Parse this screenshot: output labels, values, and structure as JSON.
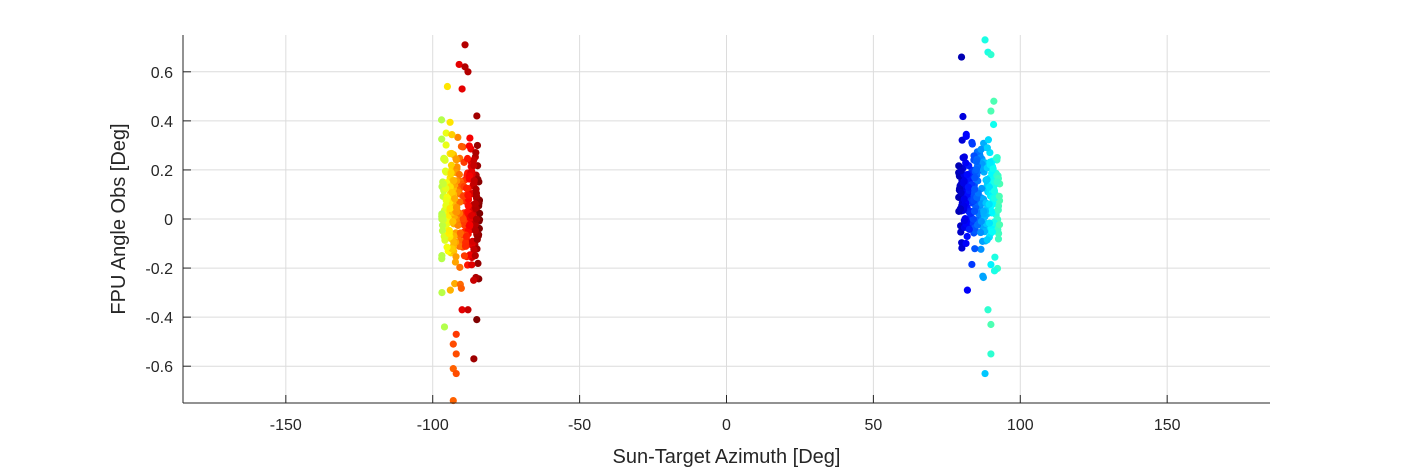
{
  "chart_data": {
    "type": "scatter",
    "title": "",
    "xlabel": "Sun-Target Azimuth [Deg]",
    "ylabel": "FPU Angle Obs [Deg]",
    "xlim": [
      -185,
      185
    ],
    "ylim": [
      -0.75,
      0.75
    ],
    "xticks": [
      -150,
      -100,
      -50,
      0,
      50,
      100,
      150
    ],
    "xtick_labels": [
      "-150",
      "-100",
      "-50",
      "0",
      "50",
      "100",
      "150"
    ],
    "yticks": [
      -0.6,
      -0.4,
      -0.2,
      0,
      0.2,
      0.4,
      0.6
    ],
    "ytick_labels": [
      "-0.6",
      "-0.4",
      "-0.2",
      "0",
      "0.2",
      "0.4",
      "0.6"
    ],
    "grid": true,
    "legend": "none",
    "colormap": "jet",
    "clusters": [
      {
        "x_range": [
          -97,
          -84
        ],
        "y_center": 0.05,
        "y_spread": 0.13,
        "color_value_range": [
          0.55,
          1.0
        ],
        "color_trend": "increasing-with-x"
      },
      {
        "x_range": [
          79,
          93
        ],
        "y_center": 0.08,
        "y_spread": 0.11,
        "color_value_range": [
          0.05,
          0.45
        ],
        "color_trend": "increasing-with-x"
      }
    ],
    "outliers": [
      {
        "x": -89,
        "y": 0.71,
        "c": 0.95
      },
      {
        "x": -91,
        "y": 0.63,
        "c": 0.9
      },
      {
        "x": -89,
        "y": 0.62,
        "c": 0.95
      },
      {
        "x": -88,
        "y": 0.6,
        "c": 0.95
      },
      {
        "x": -90,
        "y": 0.53,
        "c": 0.9
      },
      {
        "x": -95,
        "y": 0.54,
        "c": 0.65
      },
      {
        "x": -96,
        "y": -0.44,
        "c": 0.55
      },
      {
        "x": -92,
        "y": -0.47,
        "c": 0.82
      },
      {
        "x": -93,
        "y": -0.51,
        "c": 0.8
      },
      {
        "x": -92,
        "y": -0.55,
        "c": 0.8
      },
      {
        "x": -86,
        "y": -0.57,
        "c": 0.97
      },
      {
        "x": -93,
        "y": -0.61,
        "c": 0.78
      },
      {
        "x": -92,
        "y": -0.63,
        "c": 0.8
      },
      {
        "x": -93,
        "y": -0.74,
        "c": 0.78
      },
      {
        "x": -90,
        "y": -0.37,
        "c": 0.9
      },
      {
        "x": -88,
        "y": -0.37,
        "c": 0.93
      },
      {
        "x": -85,
        "y": -0.41,
        "c": 1.0
      },
      {
        "x": -94,
        "y": -0.29,
        "c": 0.7
      },
      {
        "x": 80,
        "y": 0.66,
        "c": 0.05
      },
      {
        "x": 88,
        "y": 0.73,
        "c": 0.4
      },
      {
        "x": 89,
        "y": 0.68,
        "c": 0.4
      },
      {
        "x": 90,
        "y": 0.67,
        "c": 0.42
      },
      {
        "x": 88,
        "y": -0.63,
        "c": 0.32
      },
      {
        "x": 82,
        "y": -0.29,
        "c": 0.12
      },
      {
        "x": 90,
        "y": -0.55,
        "c": 0.42
      },
      {
        "x": 90,
        "y": -0.43,
        "c": 0.45
      },
      {
        "x": 89,
        "y": -0.37,
        "c": 0.42
      },
      {
        "x": 91,
        "y": 0.48,
        "c": 0.45
      },
      {
        "x": 90,
        "y": 0.44,
        "c": 0.45
      }
    ],
    "cluster_point_count": 280
  }
}
